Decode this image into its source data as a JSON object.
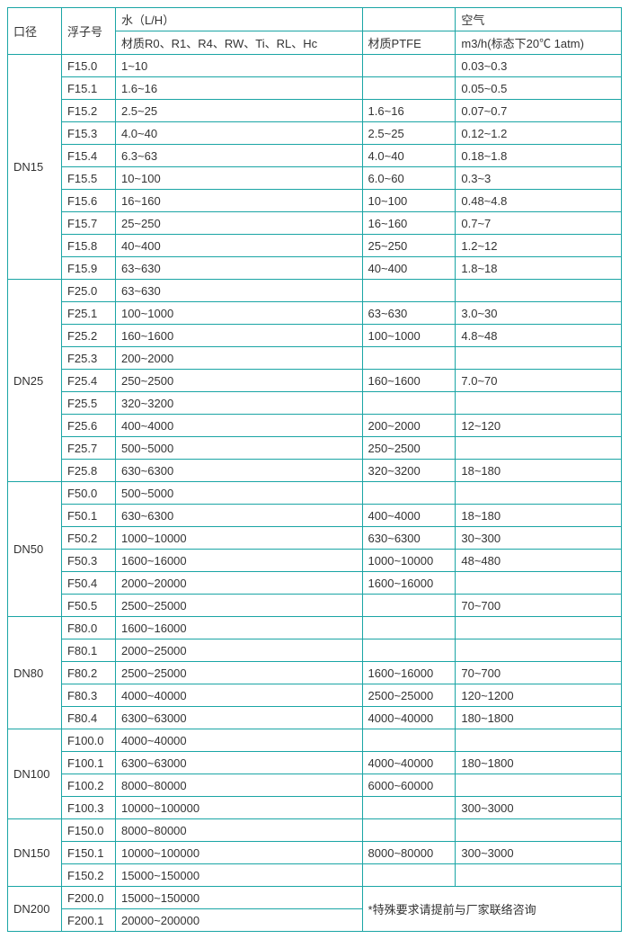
{
  "border_color": "#1aa5a5",
  "text_color": "#333333",
  "font_size": 13,
  "headers": {
    "dn": "口径",
    "float": "浮子号",
    "water_group": "水（L/H）",
    "water_sub": "材质R0、R1、R4、RW、Ti、RL、Hc",
    "ptfe_group": "",
    "ptfe_sub": "材质PTFE",
    "air_group": "空气",
    "air_sub": "m3/h(标态下20℃ 1atm)"
  },
  "groups": [
    {
      "dn": "DN15",
      "rows": [
        {
          "float": "F15.0",
          "water": "1~10",
          "ptfe": "",
          "air": "0.03~0.3"
        },
        {
          "float": "F15.1",
          "water": "1.6~16",
          "ptfe": "",
          "air": "0.05~0.5"
        },
        {
          "float": "F15.2",
          "water": "2.5~25",
          "ptfe": "1.6~16",
          "air": "0.07~0.7"
        },
        {
          "float": "F15.3",
          "water": "4.0~40",
          "ptfe": "2.5~25",
          "air": "0.12~1.2"
        },
        {
          "float": "F15.4",
          "water": "6.3~63",
          "ptfe": "4.0~40",
          "air": "0.18~1.8"
        },
        {
          "float": "F15.5",
          "water": "10~100",
          "ptfe": "6.0~60",
          "air": "0.3~3"
        },
        {
          "float": "F15.6",
          "water": "16~160",
          "ptfe": "10~100",
          "air": "0.48~4.8"
        },
        {
          "float": "F15.7",
          "water": "25~250",
          "ptfe": "16~160",
          "air": "0.7~7"
        },
        {
          "float": "F15.8",
          "water": "40~400",
          "ptfe": "25~250",
          "air": "1.2~12"
        },
        {
          "float": "F15.9",
          "water": "63~630",
          "ptfe": "40~400",
          "air": "1.8~18"
        }
      ]
    },
    {
      "dn": "DN25",
      "rows": [
        {
          "float": "F25.0",
          "water": "63~630",
          "ptfe": "",
          "air": ""
        },
        {
          "float": "F25.1",
          "water": "100~1000",
          "ptfe": "63~630",
          "air": "3.0~30"
        },
        {
          "float": "F25.2",
          "water": "160~1600",
          "ptfe": "100~1000",
          "air": "4.8~48"
        },
        {
          "float": "F25.3",
          "water": "200~2000",
          "ptfe": "",
          "air": ""
        },
        {
          "float": "F25.4",
          "water": "250~2500",
          "ptfe": "160~1600",
          "air": "7.0~70"
        },
        {
          "float": "F25.5",
          "water": "320~3200",
          "ptfe": "",
          "air": ""
        },
        {
          "float": "F25.6",
          "water": "400~4000",
          "ptfe": "200~2000",
          "air": "12~120"
        },
        {
          "float": "F25.7",
          "water": "500~5000",
          "ptfe": "250~2500",
          "air": ""
        },
        {
          "float": "F25.8",
          "water": "630~6300",
          "ptfe": "320~3200",
          "air": "18~180"
        }
      ]
    },
    {
      "dn": "DN50",
      "rows": [
        {
          "float": "F50.0",
          "water": "500~5000",
          "ptfe": "",
          "air": ""
        },
        {
          "float": "F50.1",
          "water": "630~6300",
          "ptfe": "400~4000",
          "air": "18~180"
        },
        {
          "float": "F50.2",
          "water": "1000~10000",
          "ptfe": "630~6300",
          "air": "30~300"
        },
        {
          "float": "F50.3",
          "water": "1600~16000",
          "ptfe": "1000~10000",
          "air": "48~480"
        },
        {
          "float": "F50.4",
          "water": "2000~20000",
          "ptfe": "1600~16000",
          "air": ""
        },
        {
          "float": "F50.5",
          "water": "2500~25000",
          "ptfe": "",
          "air": "70~700"
        }
      ]
    },
    {
      "dn": "DN80",
      "rows": [
        {
          "float": "F80.0",
          "water": "1600~16000",
          "ptfe": "",
          "air": ""
        },
        {
          "float": "F80.1",
          "water": "2000~25000",
          "ptfe": "",
          "air": ""
        },
        {
          "float": "F80.2",
          "water": "2500~25000",
          "ptfe": "1600~16000",
          "air": "70~700"
        },
        {
          "float": "F80.3",
          "water": "4000~40000",
          "ptfe": "2500~25000",
          "air": "120~1200"
        },
        {
          "float": "F80.4",
          "water": "6300~63000",
          "ptfe": "4000~40000",
          "air": "180~1800"
        }
      ]
    },
    {
      "dn": "DN100",
      "rows": [
        {
          "float": "F100.0",
          "water": "4000~40000",
          "ptfe": "",
          "air": ""
        },
        {
          "float": "F100.1",
          "water": "6300~63000",
          "ptfe": "4000~40000",
          "air": "180~1800"
        },
        {
          "float": "F100.2",
          "water": "8000~80000",
          "ptfe": "6000~60000",
          "air": ""
        },
        {
          "float": "F100.3",
          "water": "10000~100000",
          "ptfe": "",
          "air": "300~3000"
        }
      ]
    },
    {
      "dn": "DN150",
      "rows": [
        {
          "float": "F150.0",
          "water": "8000~80000",
          "ptfe": "",
          "air": ""
        },
        {
          "float": "F150.1",
          "water": "10000~100000",
          "ptfe": "8000~80000",
          "air": "300~3000"
        },
        {
          "float": "F150.2",
          "water": "15000~150000",
          "ptfe": "",
          "air": ""
        }
      ]
    },
    {
      "dn": "DN200",
      "rows": [
        {
          "float": "F200.0",
          "water": "15000~150000",
          "note": "*特殊要求请提前与厂家联络咨询"
        },
        {
          "float": "F200.1",
          "water": "20000~200000"
        }
      ],
      "note_rowspan": 2,
      "note_colspan": 2
    }
  ]
}
